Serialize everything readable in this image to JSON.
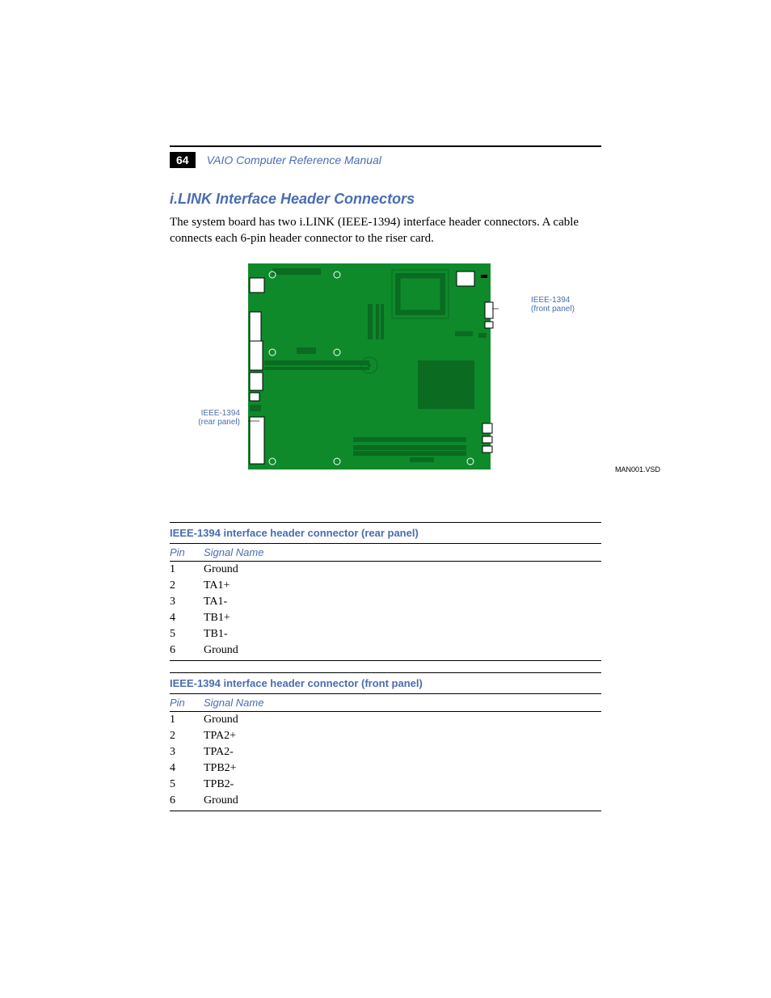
{
  "page_number": "64",
  "manual_title": "VAIO Computer Reference Manual",
  "section_heading": "i.LINK Interface Header Connectors",
  "body_text": "The system board has two i.LINK (IEEE-1394) interface header connectors. A cable connects each 6-pin header connector to the riser card.",
  "diagram": {
    "callout_front": "IEEE-1394\n(front panel)",
    "callout_rear": "IEEE-1394\n(rear panel)",
    "file_label": "MAN001.VSD",
    "board_color": "#0e8a2b",
    "board_dark": "#0a6b21",
    "bg": "#ffffff",
    "callout_color": "#4a6db0"
  },
  "tables": [
    {
      "title": "IEEE-1394 interface header connector (rear panel)",
      "head_pin": "Pin",
      "head_signal": "Signal Name",
      "rows": [
        {
          "pin": "1",
          "signal": "Ground"
        },
        {
          "pin": "2",
          "signal": "TA1+"
        },
        {
          "pin": "3",
          "signal": "TA1-"
        },
        {
          "pin": "4",
          "signal": "TB1+"
        },
        {
          "pin": "5",
          "signal": "TB1-"
        },
        {
          "pin": "6",
          "signal": "Ground"
        }
      ]
    },
    {
      "title": "IEEE-1394 interface header connector (front panel)",
      "head_pin": "Pin",
      "head_signal": "Signal Name",
      "rows": [
        {
          "pin": "1",
          "signal": "Ground"
        },
        {
          "pin": "2",
          "signal": "TPA2+"
        },
        {
          "pin": "3",
          "signal": "TPA2-"
        },
        {
          "pin": "4",
          "signal": "TPB2+"
        },
        {
          "pin": "5",
          "signal": "TPB2-"
        },
        {
          "pin": "6",
          "signal": "Ground"
        }
      ]
    }
  ],
  "colors": {
    "accent": "#4a6db0",
    "text": "#000000"
  }
}
